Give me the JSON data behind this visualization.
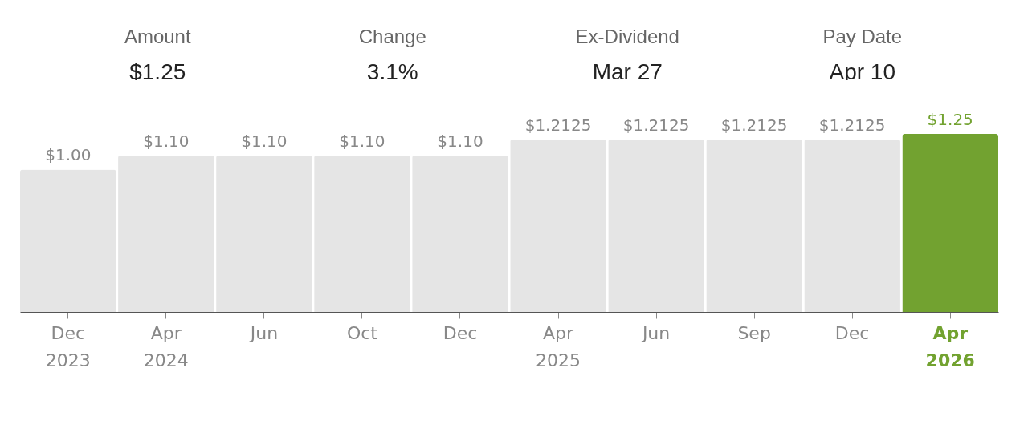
{
  "chart_data": {
    "type": "bar",
    "categories": [
      "Dec 2023",
      "Apr 2024",
      "Jun",
      "Oct",
      "Dec",
      "Apr 2025",
      "Jun",
      "Sep",
      "Dec",
      "Apr 2026"
    ],
    "values": [
      1.0,
      1.1,
      1.1,
      1.1,
      1.1,
      1.2125,
      1.2125,
      1.2125,
      1.2125,
      1.25
    ],
    "value_labels": [
      "$1.00",
      "$1.10",
      "$1.10",
      "$1.10",
      "$1.10",
      "$1.2125",
      "$1.2125",
      "$1.2125",
      "$1.2125",
      "$1.25"
    ],
    "colors": [
      "#e5e5e5",
      "#e5e5e5",
      "#e5e5e5",
      "#e5e5e5",
      "#e5e5e5",
      "#e5e5e5",
      "#e5e5e5",
      "#e5e5e5",
      "#e5e5e5",
      "#72a230"
    ],
    "annotations": [
      "Amount",
      "$1.25",
      "Change",
      "3.1%",
      "Ex-Dividend",
      "Mar 27",
      "Pay Date",
      "Apr 10"
    ]
  }
}
